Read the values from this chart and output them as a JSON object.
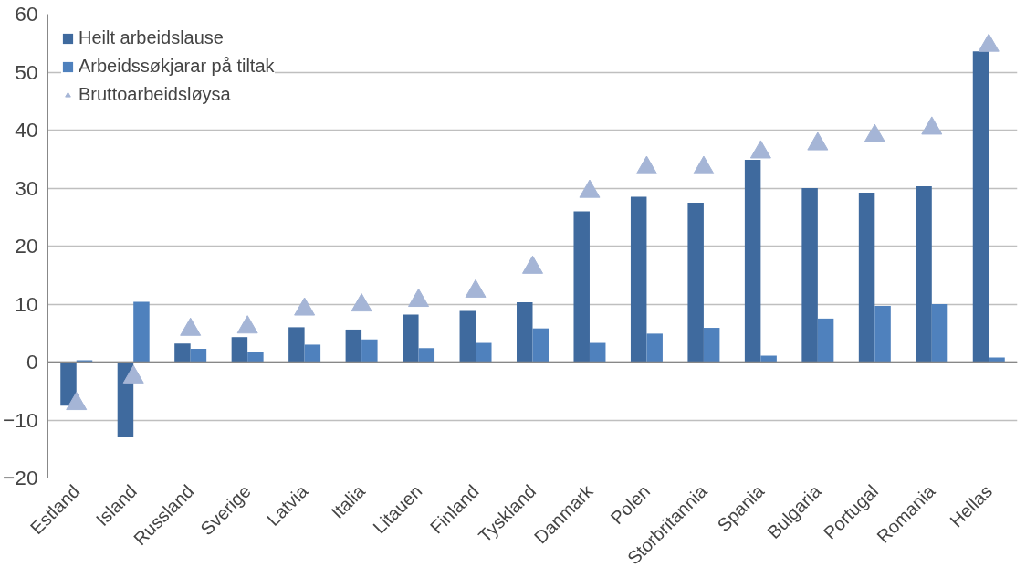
{
  "chart_data": {
    "type": "bar",
    "categories": [
      "Estland",
      "Island",
      "Russland",
      "Sverige",
      "Latvia",
      "Italia",
      "Litauen",
      "Finland",
      "Tyskland",
      "Danmark",
      "Polen",
      "Storbritannia",
      "Spania",
      "Bulgaria",
      "Portugal",
      "Romania",
      "Hellas"
    ],
    "series": [
      {
        "name": "Heilt arbeidslause",
        "color": "#3f6a9e",
        "values": [
          -7.5,
          -13,
          3.2,
          4.3,
          6,
          5.6,
          8.2,
          8.8,
          10.3,
          26,
          28.5,
          27.5,
          34.9,
          30,
          29.2,
          30.3,
          53.6
        ]
      },
      {
        "name": "Arbeidssøkjarar på tiltak",
        "color": "#4f81bd",
        "values": [
          0.3,
          10.4,
          2.3,
          1.8,
          3.0,
          3.9,
          2.4,
          3.3,
          5.8,
          3.3,
          4.9,
          5.9,
          1.1,
          7.5,
          9.7,
          10.0,
          0.8
        ]
      },
      {
        "name": "Bruttoarbeidsløysa",
        "type": "scatter",
        "marker": "triangle",
        "color": "#a5b5d6",
        "values": [
          -7.2,
          -2.6,
          5.6,
          6.0,
          9.1,
          9.8,
          10.6,
          12.2,
          16.3,
          29.4,
          33.5,
          33.5,
          36.2,
          37.6,
          39.0,
          40.3,
          54.6
        ]
      }
    ],
    "ylim": [
      -20,
      60
    ],
    "yticks": [
      -20,
      -10,
      0,
      10,
      20,
      30,
      40,
      50,
      60
    ],
    "grid": "y",
    "legend": "top left"
  }
}
